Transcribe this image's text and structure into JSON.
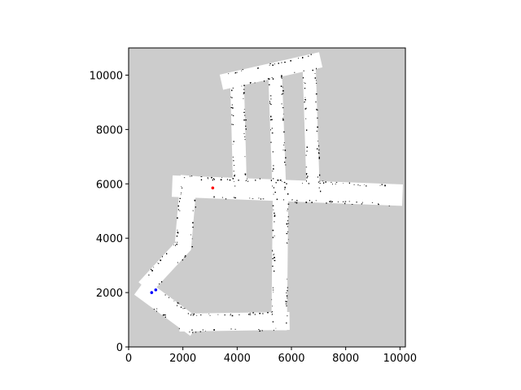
{
  "chart_data": {
    "type": "map",
    "title": "",
    "xlabel": "",
    "ylabel": "",
    "xlim": [
      0,
      10200
    ],
    "ylim": [
      0,
      11000
    ],
    "x_ticks": [
      0,
      2000,
      4000,
      6000,
      8000,
      10000
    ],
    "y_ticks": [
      0,
      2000,
      4000,
      6000,
      8000,
      10000
    ],
    "grid": false,
    "colors": {
      "unknown": "#cccccc",
      "free": "#ffffff",
      "occupied": "#000000",
      "marker_red": "#ff0000",
      "marker_blue": "#0000ff"
    },
    "corridors": [
      {
        "name": "top-wing",
        "path": [
          [
            3700,
            9800
          ],
          [
            6800,
            10500
          ]
        ],
        "width": 260
      },
      {
        "name": "upper-left-vertical",
        "path": [
          [
            4000,
            9700
          ],
          [
            4100,
            5900
          ]
        ],
        "width": 230
      },
      {
        "name": "middle-vertical",
        "path": [
          [
            5400,
            10000
          ],
          [
            5550,
            5800
          ]
        ],
        "width": 230
      },
      {
        "name": "upper-right-vertical",
        "path": [
          [
            6650,
            10400
          ],
          [
            6800,
            5700
          ]
        ],
        "width": 220
      },
      {
        "name": "main-horizontal",
        "path": [
          [
            2000,
            5900
          ],
          [
            9700,
            5600
          ]
        ],
        "width": 360
      },
      {
        "name": "right-lower-vertical",
        "path": [
          [
            5600,
            5800
          ],
          [
            5550,
            900
          ]
        ],
        "width": 260
      },
      {
        "name": "bottom-horizontal",
        "path": [
          [
            2200,
            900
          ],
          [
            5600,
            950
          ]
        ],
        "width": 300
      },
      {
        "name": "left-outer",
        "path": [
          [
            2200,
            6000
          ],
          [
            2000,
            3700
          ],
          [
            800,
            2400
          ]
        ],
        "width": 280
      },
      {
        "name": "bottom-left-diagonal",
        "path": [
          [
            700,
            2000
          ],
          [
            2200,
            900
          ]
        ],
        "width": 320
      }
    ],
    "markers": [
      {
        "name": "red-marker",
        "x": 3100,
        "y": 5850,
        "color": "#ff0000"
      },
      {
        "name": "blue-marker",
        "x": 850,
        "y": 2000,
        "color": "#0000ff"
      },
      {
        "name": "blue-marker-2",
        "x": 1000,
        "y": 2100,
        "color": "#0000ff"
      }
    ]
  }
}
